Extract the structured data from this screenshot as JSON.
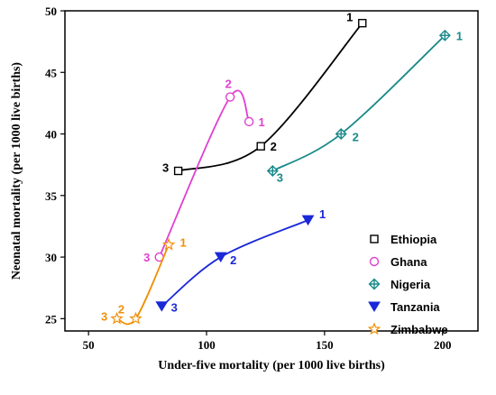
{
  "chart_data": {
    "type": "line",
    "xlabel": "Under-five mortality (per 1000 live births)",
    "ylabel": "Neonatal mortality (per 1000 live births)",
    "xlim": [
      40,
      215
    ],
    "ylim": [
      24,
      50
    ],
    "xticks": [
      50,
      100,
      150,
      200
    ],
    "yticks": [
      25,
      30,
      35,
      40,
      45,
      50
    ],
    "grid": false,
    "legend_position": "bottom-right",
    "series": [
      {
        "name": "Ethiopia",
        "color": "#000000",
        "marker": "square",
        "points": [
          {
            "x": 166,
            "y": 49,
            "label": "1"
          },
          {
            "x": 123,
            "y": 39,
            "label": "2"
          },
          {
            "x": 88,
            "y": 37,
            "label": "3"
          }
        ]
      },
      {
        "name": "Ghana",
        "color": "#e040d0",
        "marker": "circle",
        "points": [
          {
            "x": 118,
            "y": 41,
            "label": "1"
          },
          {
            "x": 110,
            "y": 43,
            "label": "2"
          },
          {
            "x": 80,
            "y": 30,
            "label": "3"
          }
        ]
      },
      {
        "name": "Nigeria",
        "color": "#1a8a8a",
        "marker": "diamond-plus",
        "points": [
          {
            "x": 201,
            "y": 48,
            "label": "1"
          },
          {
            "x": 157,
            "y": 40,
            "label": "2"
          },
          {
            "x": 128,
            "y": 37,
            "label": "3"
          }
        ]
      },
      {
        "name": "Tanzania",
        "color": "#1a28d8",
        "marker": "triangle-down",
        "points": [
          {
            "x": 143,
            "y": 33,
            "label": "1"
          },
          {
            "x": 106,
            "y": 30,
            "label": "2"
          },
          {
            "x": 81,
            "y": 26,
            "label": "3"
          }
        ]
      },
      {
        "name": "Zimbabwe",
        "color": "#f0900a",
        "marker": "star",
        "points": [
          {
            "x": 84,
            "y": 31,
            "label": "1"
          },
          {
            "x": 70,
            "y": 25,
            "label": "2"
          },
          {
            "x": 62,
            "y": 25,
            "label": "3"
          }
        ]
      }
    ]
  }
}
